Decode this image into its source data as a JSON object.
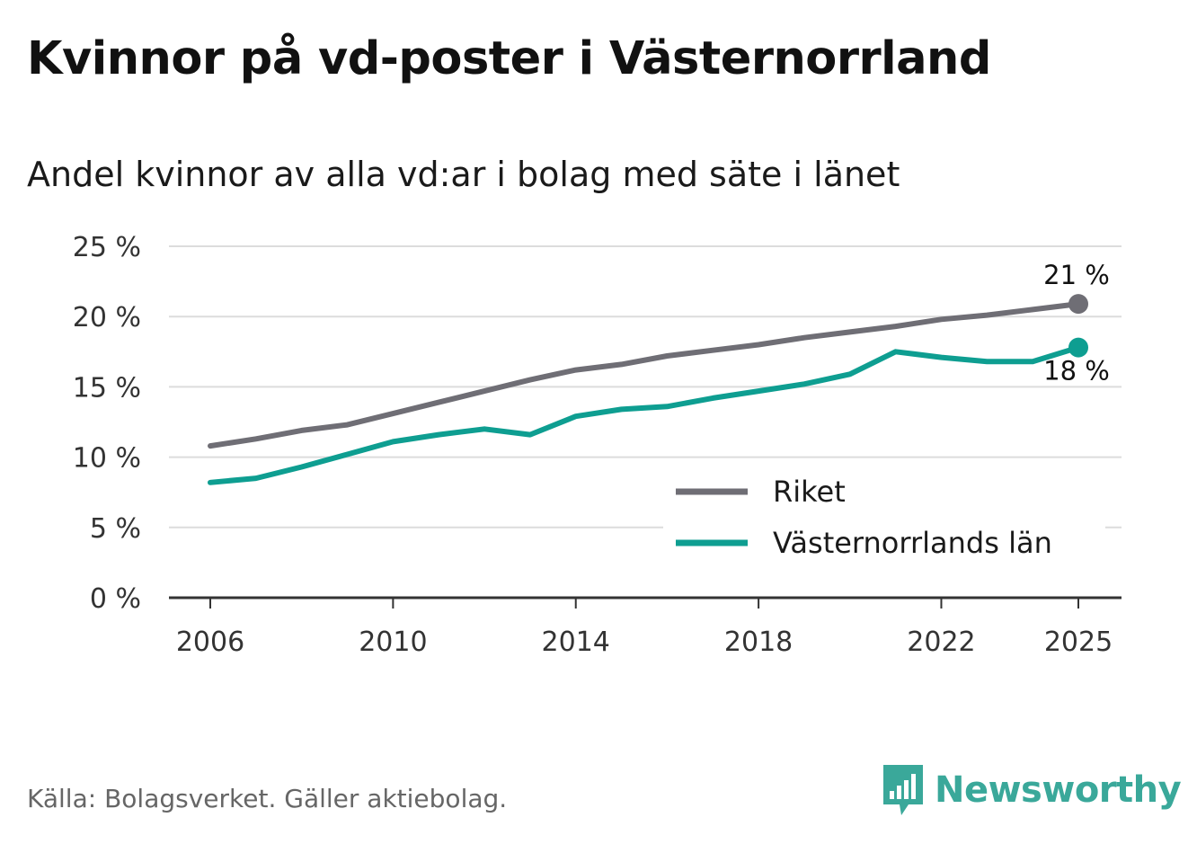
{
  "chart_data": {
    "type": "line",
    "title": "Kvinnor på vd-poster i Västernorrland",
    "subtitle": "Andel kvinnor av alla vd:ar i bolag med säte i länet",
    "x": [
      2006,
      2007,
      2008,
      2009,
      2010,
      2011,
      2012,
      2013,
      2014,
      2015,
      2016,
      2017,
      2018,
      2019,
      2020,
      2021,
      2022,
      2023,
      2024,
      2025
    ],
    "series": [
      {
        "name": "Riket",
        "color": "#6f6e75",
        "values": [
          10.8,
          11.3,
          11.9,
          12.3,
          13.1,
          13.9,
          14.7,
          15.5,
          16.2,
          16.6,
          17.2,
          17.6,
          18.0,
          18.5,
          18.9,
          19.3,
          19.8,
          20.1,
          20.5,
          20.9
        ],
        "end_label": "21 %"
      },
      {
        "name": "Västernorrlands län",
        "color": "#0e9e91",
        "values": [
          8.2,
          8.5,
          9.3,
          10.2,
          11.1,
          11.6,
          12.0,
          11.6,
          12.9,
          13.4,
          13.6,
          14.2,
          14.7,
          15.2,
          15.9,
          17.5,
          17.1,
          16.8,
          16.8,
          17.8
        ],
        "end_label": "18 %"
      }
    ],
    "ylim": [
      0,
      25
    ],
    "yticks": [
      0,
      5,
      10,
      15,
      20,
      25
    ],
    "ytick_labels": [
      "0 %",
      "5 %",
      "10 %",
      "15 %",
      "20 %",
      "25 %"
    ],
    "xticks": [
      2006,
      2010,
      2014,
      2018,
      2022,
      2025
    ],
    "xtick_labels": [
      "2006",
      "2010",
      "2014",
      "2018",
      "2022",
      "2025"
    ],
    "xlabel": "",
    "ylabel": "",
    "grid": true,
    "legend_position": "bottom-right"
  },
  "footer": {
    "source": "Källa: Bolagsverket. Gäller aktiebolag.",
    "brand": "Newsworthy",
    "brand_color": "#3aa89a"
  }
}
